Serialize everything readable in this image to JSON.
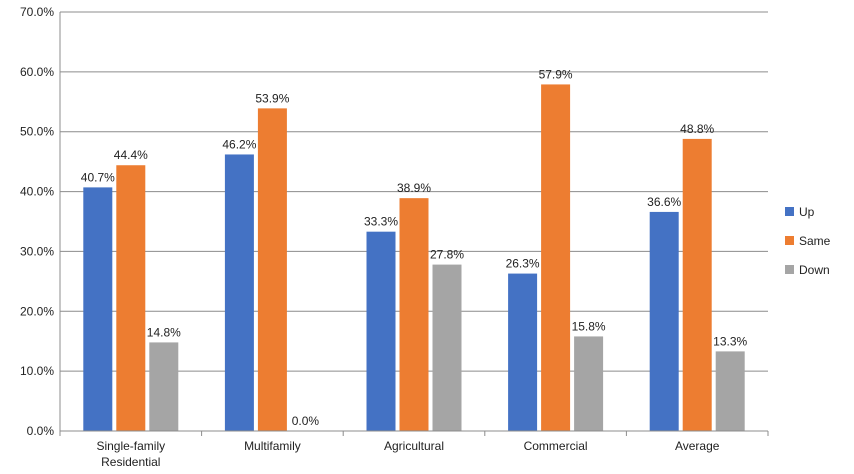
{
  "chart_data": {
    "type": "bar",
    "title": "",
    "xlabel": "",
    "ylabel": "",
    "categories": [
      [
        "Single-family",
        "Residential"
      ],
      [
        "Multifamily"
      ],
      [
        "Agricultural"
      ],
      [
        "Commercial"
      ],
      [
        "Average"
      ]
    ],
    "series": [
      {
        "name": "Up",
        "color": "#4472C4",
        "values": [
          40.7,
          46.2,
          33.3,
          26.3,
          36.6
        ]
      },
      {
        "name": "Same",
        "color": "#ED7D31",
        "values": [
          44.4,
          53.9,
          38.9,
          57.9,
          48.8
        ]
      },
      {
        "name": "Down",
        "color": "#A5A5A5",
        "values": [
          14.8,
          0.0,
          27.8,
          15.8,
          13.3
        ]
      }
    ],
    "data_labels": [
      [
        "40.7%",
        "46.2%",
        "33.3%",
        "26.3%",
        "36.6%"
      ],
      [
        "44.4%",
        "53.9%",
        "38.9%",
        "57.9%",
        "48.8%"
      ],
      [
        "14.8%",
        "0.0%",
        "27.8%",
        "15.8%",
        "13.3%"
      ]
    ],
    "ylim": [
      0,
      70
    ],
    "yticks": [
      "0.0%",
      "10.0%",
      "20.0%",
      "30.0%",
      "40.0%",
      "50.0%",
      "60.0%",
      "70.0%"
    ],
    "grid": true,
    "legend_position": "right"
  }
}
